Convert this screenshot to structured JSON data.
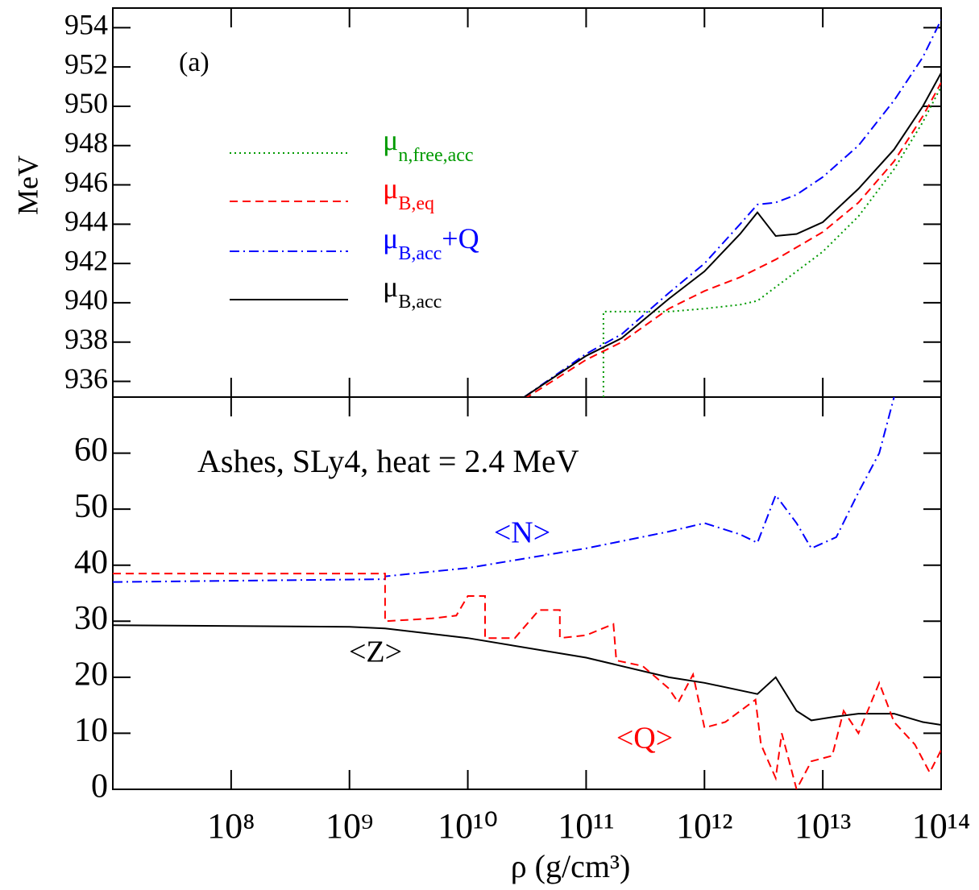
{
  "chart_data": [
    {
      "type": "line",
      "xscale": "log",
      "ylabel": "MeV",
      "annotation": "(a)",
      "xlim": [
        10000000.0,
        100000000000000.0
      ],
      "ylim": [
        935.2,
        955
      ],
      "yticks": [
        936,
        938,
        940,
        942,
        944,
        946,
        948,
        950,
        952,
        954
      ],
      "series": [
        {
          "name": "μ",
          "subscript": "n,free,acc",
          "color": "#009a00",
          "dash": "dotted",
          "x": [
            140000000000.0,
            140000000000.0,
            500000000000.0,
            1000000000000.0,
            2000000000000.0,
            2800000000000.0,
            4000000000000.0,
            10000000000000.0,
            20000000000000.0,
            40000000000000.0,
            70000000000000.0,
            100000000000000.0
          ],
          "values": [
            935.2,
            939.55,
            939.55,
            939.7,
            939.9,
            940.1,
            940.8,
            942.6,
            944.4,
            946.8,
            949.2,
            951.0
          ]
        },
        {
          "name": "μ",
          "subscript": "B,eq",
          "color": "#ff0000",
          "dash": "dashed",
          "x": [
            30000000000.0,
            100000000000.0,
            200000000000.0,
            500000000000.0,
            1000000000000.0,
            2000000000000.0,
            4000000000000.0,
            10000000000000.0,
            20000000000000.0,
            40000000000000.0,
            70000000000000.0,
            100000000000000.0
          ],
          "values": [
            935.1,
            937.1,
            938.0,
            939.7,
            940.6,
            941.3,
            942.2,
            943.6,
            945.1,
            947.2,
            949.5,
            951.2
          ]
        },
        {
          "name": "μ",
          "subscript": "B,acc",
          "suffix": "+Q",
          "color": "#0000ff",
          "dash": "dashdot",
          "x": [
            30000000000.0,
            100000000000.0,
            200000000000.0,
            500000000000.0,
            1000000000000.0,
            2000000000000.0,
            2800000000000.0,
            4000000000000.0,
            6000000000000.0,
            10000000000000.0,
            20000000000000.0,
            40000000000000.0,
            70000000000000.0,
            100000000000000.0
          ],
          "values": [
            935.2,
            937.4,
            938.4,
            940.5,
            942.0,
            944.0,
            945.0,
            945.1,
            945.5,
            946.4,
            948.0,
            950.3,
            952.5,
            954.4
          ]
        },
        {
          "name": "μ",
          "subscript": "B,acc",
          "color": "#000000",
          "dash": "solid",
          "x": [
            30000000000.0,
            100000000000.0,
            200000000000.0,
            500000000000.0,
            1000000000000.0,
            2000000000000.0,
            2800000000000.0,
            4000000000000.0,
            6000000000000.0,
            10000000000000.0,
            20000000000000.0,
            40000000000000.0,
            70000000000000.0,
            100000000000000.0
          ],
          "values": [
            935.2,
            937.3,
            938.2,
            940.2,
            941.6,
            943.5,
            944.6,
            943.4,
            943.5,
            944.1,
            945.8,
            947.8,
            950.0,
            951.7
          ]
        }
      ]
    },
    {
      "type": "line",
      "xscale": "log",
      "xlabel": "ρ (g/cm³)",
      "annotation": "Ashes, SLy4, heat = 2.4 MeV",
      "xlim": [
        10000000.0,
        100000000000000.0
      ],
      "ylim": [
        0,
        70
      ],
      "yticks": [
        0,
        10,
        20,
        30,
        40,
        50,
        60
      ],
      "xticks": [
        {
          "value": 100000000.0,
          "label": "10⁸"
        },
        {
          "value": 1000000000.0,
          "label": "10⁹"
        },
        {
          "value": 10000000000.0,
          "label": "10¹⁰"
        },
        {
          "value": 100000000000.0,
          "label": "10¹¹"
        },
        {
          "value": 1000000000000.0,
          "label": "10¹²"
        },
        {
          "value": 10000000000000.0,
          "label": "10¹³"
        },
        {
          "value": 100000000000000.0,
          "label": "10¹⁴"
        }
      ],
      "series": [
        {
          "name": "<N>",
          "color": "#0000ff",
          "dash": "dashdot",
          "x": [
            10000000.0,
            2000000000.0,
            2000000000.0,
            10000000000.0,
            100000000000.0,
            500000000000.0,
            1000000000000.0,
            2000000000000.0,
            2800000000000.0,
            4000000000000.0,
            6000000000000.0,
            8000000000000.0,
            13000000000000.0,
            20000000000000.0,
            30000000000000.0,
            40000000000000.0,
            50000000000000.0
          ],
          "values": [
            37,
            37.5,
            38,
            39.5,
            43,
            46,
            47.5,
            45.5,
            44,
            52.5,
            47.5,
            43,
            45,
            53,
            60,
            70,
            75
          ]
        },
        {
          "name": "<Z>",
          "color": "#000000",
          "dash": "solid",
          "x": [
            10000000.0,
            1000000000.0,
            2000000000.0,
            10000000000.0,
            100000000000.0,
            500000000000.0,
            1000000000000.0,
            2800000000000.0,
            4000000000000.0,
            6000000000000.0,
            8000000000000.0,
            13000000000000.0,
            20000000000000.0,
            40000000000000.0,
            70000000000000.0,
            100000000000000.0
          ],
          "values": [
            29.3,
            29.0,
            28.7,
            27,
            23.5,
            20,
            19,
            17,
            20,
            14,
            12.3,
            13,
            13.5,
            13.5,
            12,
            11.5
          ]
        },
        {
          "name": "<Q>",
          "color": "#ff0000",
          "dash": "dashed",
          "x": [
            10000000.0,
            2000000000.0,
            2000000000.0,
            5000000000.0,
            8000000000.0,
            10000000000.0,
            14000000000.0,
            14000000000.0,
            25000000000.0,
            40000000000.0,
            60000000000.0,
            60000000000.0,
            100000000000.0,
            170000000000.0,
            180000000000.0,
            300000000000.0,
            500000000000.0,
            600000000000.0,
            800000000000.0,
            1000000000000.0,
            1500000000000.0,
            2700000000000.0,
            3000000000000.0,
            4000000000000.0,
            4500000000000.0,
            6000000000000.0,
            8000000000000.0,
            12000000000000.0,
            15000000000000.0,
            20000000000000.0,
            30000000000000.0,
            40000000000000.0,
            60000000000000.0,
            80000000000000.0,
            100000000000000.0
          ],
          "values": [
            38.5,
            38.5,
            30,
            30.5,
            31,
            34.5,
            34.5,
            27,
            27,
            32,
            32,
            27,
            27.5,
            29.5,
            23,
            22,
            18,
            15.5,
            20.5,
            11,
            12,
            16,
            8,
            2,
            10,
            0,
            5,
            6,
            14,
            10,
            19,
            12,
            8,
            3,
            7
          ]
        }
      ]
    }
  ]
}
